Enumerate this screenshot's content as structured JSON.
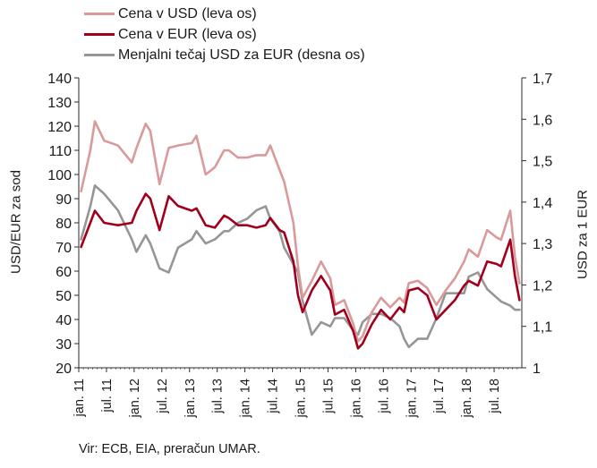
{
  "chart_data": {
    "type": "line",
    "title": "",
    "ylabel": "USD/EUR za sod",
    "y2label": "USD za 1 EUR",
    "ylim": [
      20,
      140
    ],
    "y_ticks": [
      "20",
      "30",
      "40",
      "50",
      "60",
      "70",
      "80",
      "90",
      "100",
      "110",
      "120",
      "130",
      "140"
    ],
    "y2lim": [
      1.0,
      1.7
    ],
    "y2_ticks": [
      "1",
      "1,1",
      "1,2",
      "1,3",
      "1,4",
      "1,5",
      "1,6",
      "1,7"
    ],
    "x_ticks": [
      "jan. 11",
      "jul. 11",
      "jan. 12",
      "jul. 12",
      "jan. 13",
      "jul. 13",
      "jan. 14",
      "jul. 14",
      "jan. 15",
      "jul. 15",
      "jan. 16",
      "jul. 16",
      "jan. 17",
      "jul. 17",
      "jan. 18",
      "jul. 18"
    ],
    "x_range": [
      "2011-01",
      "2018-12"
    ],
    "grid": false,
    "legend_position": "top-left",
    "series": [
      {
        "name": "Cena v USD (leva os)",
        "axis": "left",
        "color": "#d99a9b",
        "x": [
          "2011-01",
          "2011-03",
          "2011-04",
          "2011-06",
          "2011-09",
          "2011-12",
          "2012-01",
          "2012-03",
          "2012-04",
          "2012-06",
          "2012-08",
          "2012-10",
          "2013-01",
          "2013-02",
          "2013-04",
          "2013-06",
          "2013-08",
          "2013-09",
          "2013-11",
          "2014-01",
          "2014-03",
          "2014-05",
          "2014-06",
          "2014-08",
          "2014-09",
          "2014-11",
          "2014-12",
          "2015-01",
          "2015-03",
          "2015-05",
          "2015-07",
          "2015-08",
          "2015-10",
          "2015-12",
          "2016-01",
          "2016-02",
          "2016-04",
          "2016-06",
          "2016-08",
          "2016-10",
          "2016-11",
          "2016-12",
          "2017-02",
          "2017-04",
          "2017-06",
          "2017-08",
          "2017-10",
          "2017-12",
          "2018-01",
          "2018-03",
          "2018-05",
          "2018-07",
          "2018-08",
          "2018-10",
          "2018-11",
          "2018-12"
        ],
        "values": [
          93,
          110,
          122,
          114,
          112,
          105,
          111,
          121,
          118,
          96,
          111,
          112,
          113,
          116,
          100,
          103,
          110,
          110,
          107,
          107,
          108,
          108,
          112,
          102,
          97,
          80,
          62,
          49,
          56,
          64,
          57,
          46,
          48,
          38,
          31,
          33,
          43,
          49,
          45,
          49,
          47,
          55,
          56,
          53,
          46,
          52,
          57,
          64,
          69,
          66,
          77,
          74,
          73,
          85,
          66,
          55
        ]
      },
      {
        "name": "Cena v EUR (leva os)",
        "axis": "left",
        "color": "#a0001c",
        "x": [
          "2011-01",
          "2011-03",
          "2011-04",
          "2011-06",
          "2011-09",
          "2011-12",
          "2012-01",
          "2012-03",
          "2012-04",
          "2012-06",
          "2012-08",
          "2012-10",
          "2013-01",
          "2013-02",
          "2013-04",
          "2013-06",
          "2013-08",
          "2013-09",
          "2013-11",
          "2014-01",
          "2014-03",
          "2014-05",
          "2014-06",
          "2014-08",
          "2014-09",
          "2014-11",
          "2014-12",
          "2015-01",
          "2015-03",
          "2015-05",
          "2015-07",
          "2015-08",
          "2015-10",
          "2015-12",
          "2016-01",
          "2016-02",
          "2016-04",
          "2016-06",
          "2016-08",
          "2016-10",
          "2016-11",
          "2016-12",
          "2017-02",
          "2017-04",
          "2017-06",
          "2017-08",
          "2017-10",
          "2017-12",
          "2018-01",
          "2018-03",
          "2018-05",
          "2018-07",
          "2018-08",
          "2018-10",
          "2018-11",
          "2018-12"
        ],
        "values": [
          70,
          80,
          85,
          80,
          79,
          80,
          85,
          92,
          90,
          77,
          91,
          87,
          85,
          86,
          79,
          78,
          83,
          82,
          79,
          79,
          78,
          79,
          82,
          77,
          76,
          64,
          50,
          43,
          52,
          58,
          52,
          42,
          44,
          35,
          28,
          30,
          38,
          44,
          40,
          45,
          43,
          52,
          53,
          50,
          40,
          44,
          48,
          54,
          56,
          54,
          64,
          63,
          62,
          73,
          58,
          48
        ]
      },
      {
        "name": "Menjalni tečaj USD za EUR (desna os)",
        "axis": "right",
        "color": "#969696",
        "x": [
          "2011-01",
          "2011-03",
          "2011-04",
          "2011-06",
          "2011-09",
          "2011-12",
          "2012-01",
          "2012-03",
          "2012-04",
          "2012-06",
          "2012-08",
          "2012-10",
          "2013-01",
          "2013-02",
          "2013-04",
          "2013-06",
          "2013-08",
          "2013-09",
          "2013-11",
          "2014-01",
          "2014-03",
          "2014-05",
          "2014-06",
          "2014-08",
          "2014-09",
          "2014-11",
          "2014-12",
          "2015-01",
          "2015-03",
          "2015-05",
          "2015-07",
          "2015-08",
          "2015-10",
          "2015-12",
          "2016-01",
          "2016-02",
          "2016-04",
          "2016-06",
          "2016-08",
          "2016-10",
          "2016-11",
          "2016-12",
          "2017-02",
          "2017-04",
          "2017-06",
          "2017-08",
          "2017-10",
          "2017-12",
          "2018-01",
          "2018-03",
          "2018-05",
          "2018-07",
          "2018-08",
          "2018-10",
          "2018-11",
          "2018-12"
        ],
        "values": [
          1.31,
          1.39,
          1.44,
          1.42,
          1.38,
          1.31,
          1.28,
          1.32,
          1.3,
          1.24,
          1.23,
          1.29,
          1.31,
          1.33,
          1.3,
          1.31,
          1.33,
          1.33,
          1.35,
          1.36,
          1.38,
          1.39,
          1.36,
          1.33,
          1.29,
          1.25,
          1.23,
          1.16,
          1.08,
          1.11,
          1.1,
          1.12,
          1.12,
          1.09,
          1.08,
          1.11,
          1.13,
          1.13,
          1.12,
          1.1,
          1.07,
          1.05,
          1.07,
          1.07,
          1.12,
          1.18,
          1.18,
          1.18,
          1.22,
          1.23,
          1.19,
          1.17,
          1.16,
          1.15,
          1.14,
          1.14
        ]
      }
    ]
  },
  "source": "Vir: ECB, EIA, preračun UMAR."
}
